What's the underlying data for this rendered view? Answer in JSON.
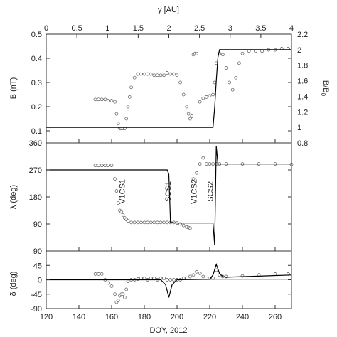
{
  "chart_data": {
    "type": "scatter",
    "x_axis": {
      "label": "DOY, 2012",
      "range": [
        120,
        270
      ],
      "ticks": [
        120,
        140,
        160,
        180,
        200,
        220,
        240,
        260
      ]
    },
    "top_axis": {
      "label": "y [AU]",
      "range": [
        0,
        4
      ],
      "ticks": [
        "0",
        "0.5",
        "1",
        "1.5",
        "2",
        "2.5",
        "3",
        "3.5",
        "4"
      ]
    },
    "panels": [
      {
        "id": "B",
        "ylabel": "B (nT)",
        "ylim": [
          0.05,
          0.5
        ],
        "yticks": [
          "0.1",
          "0.2",
          "0.3",
          "0.4",
          "0.5"
        ],
        "right_ylabel": "B/B0",
        "right_ylim": [
          0.8,
          2.2
        ],
        "right_yticks": [
          "0.8",
          "1",
          "1.2",
          "1.4",
          "1.6",
          "1.8",
          "2",
          "2.2"
        ],
        "model_curve": {
          "x": [
            120,
            222,
            223,
            224,
            225,
            226,
            270
          ],
          "y": [
            1.0,
            1.0,
            1.25,
            1.6,
            1.9,
            2.0,
            2.0
          ]
        },
        "observations": {
          "x": [
            150,
            152,
            154,
            156,
            158,
            160,
            162,
            163,
            164,
            165,
            166,
            167,
            168,
            169,
            170,
            171,
            172,
            174,
            176,
            178,
            180,
            182,
            184,
            186,
            188,
            190,
            192,
            194,
            196,
            198,
            200,
            202,
            204,
            206,
            207,
            208,
            209,
            210,
            211,
            212,
            214,
            216,
            218,
            220,
            222,
            223,
            224,
            226,
            228,
            230,
            232,
            234,
            236,
            238,
            240,
            244,
            248,
            252,
            256,
            260,
            264,
            268
          ],
          "y": [
            0.23,
            0.23,
            0.23,
            0.23,
            0.225,
            0.225,
            0.22,
            0.17,
            0.13,
            0.11,
            0.11,
            0.11,
            0.11,
            0.15,
            0.2,
            0.24,
            0.28,
            0.32,
            0.335,
            0.335,
            0.335,
            0.335,
            0.335,
            0.33,
            0.33,
            0.33,
            0.33,
            0.34,
            0.335,
            0.335,
            0.33,
            0.3,
            0.25,
            0.2,
            0.17,
            0.15,
            0.16,
            0.415,
            0.42,
            0.42,
            0.22,
            0.235,
            0.24,
            0.245,
            0.25,
            0.3,
            0.38,
            0.42,
            0.415,
            0.36,
            0.3,
            0.27,
            0.32,
            0.38,
            0.42,
            0.43,
            0.43,
            0.43,
            0.435,
            0.435,
            0.44,
            0.44
          ]
        }
      },
      {
        "id": "lambda",
        "ylabel": "λ (deg)",
        "ylim": [
          0,
          360
        ],
        "yticks": [
          "90",
          "180",
          "270",
          "360"
        ],
        "annotations": [
          "V1CS1",
          "SCS1",
          "V1CS2",
          "SCS2"
        ],
        "annotation_x": [
          168,
          196,
          212,
          222
        ],
        "model_curve": {
          "x": [
            120,
            194,
            195,
            196,
            200,
            222,
            223,
            224,
            225,
            226,
            270
          ],
          "y": [
            270,
            270,
            255,
            95,
            93,
            93,
            20,
            350,
            290,
            290,
            290
          ]
        },
        "observations": {
          "x": [
            150,
            152,
            154,
            156,
            158,
            160,
            162,
            163,
            164,
            165,
            166,
            167,
            168,
            169,
            170,
            172,
            174,
            176,
            178,
            180,
            182,
            184,
            186,
            188,
            190,
            192,
            194,
            196,
            198,
            200,
            202,
            204,
            206,
            207,
            208,
            210,
            212,
            214,
            216,
            218,
            220,
            222,
            224,
            226,
            230,
            240,
            250,
            260,
            270
          ],
          "y": [
            285,
            285,
            285,
            285,
            285,
            285,
            240,
            200,
            160,
            135,
            130,
            120,
            110,
            105,
            100,
            95,
            95,
            95,
            95,
            95,
            95,
            95,
            95,
            95,
            95,
            95,
            95,
            95,
            95,
            93,
            90,
            85,
            80,
            78,
            76,
            240,
            260,
            290,
            310,
            290,
            290,
            290,
            290,
            290,
            290,
            290,
            290,
            290,
            288
          ]
        }
      },
      {
        "id": "delta",
        "ylabel": "δ (deg)",
        "ylim": [
          -90,
          90
        ],
        "yticks": [
          "-90",
          "-45",
          "0",
          "45",
          "90"
        ],
        "model_curve": {
          "x": [
            120,
            190,
            193,
            195,
            197,
            200,
            220,
            222,
            224,
            226,
            228,
            230,
            270
          ],
          "y": [
            0,
            0,
            -15,
            -55,
            -15,
            0,
            2,
            15,
            48,
            20,
            10,
            8,
            15
          ]
        },
        "observations": {
          "x": [
            150,
            152,
            154,
            156,
            158,
            160,
            162,
            163,
            164,
            165,
            166,
            167,
            168,
            169,
            170,
            172,
            174,
            176,
            178,
            180,
            182,
            184,
            186,
            188,
            190,
            192,
            194,
            196,
            198,
            200,
            202,
            204,
            206,
            208,
            210,
            212,
            214,
            216,
            218,
            220,
            222,
            224,
            226,
            228,
            230,
            240,
            250,
            260,
            268
          ],
          "y": [
            18,
            18,
            18,
            0,
            -10,
            -20,
            -45,
            -70,
            -65,
            -50,
            -45,
            -45,
            -55,
            -30,
            -5,
            0,
            0,
            2,
            5,
            5,
            0,
            5,
            5,
            0,
            5,
            5,
            0,
            0,
            0,
            0,
            0,
            5,
            5,
            10,
            15,
            25,
            20,
            10,
            5,
            5,
            5,
            30,
            15,
            10,
            10,
            12,
            15,
            18,
            18
          ]
        }
      }
    ]
  }
}
